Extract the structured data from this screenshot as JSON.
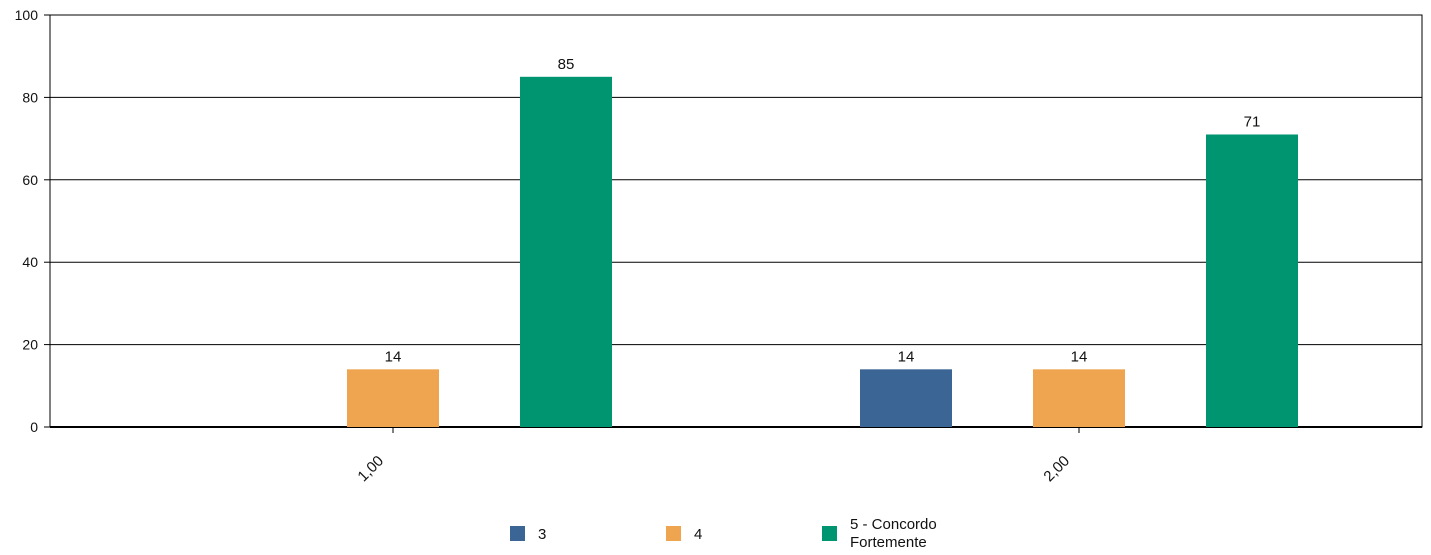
{
  "chart_data": {
    "type": "bar",
    "categories": [
      "1,00",
      "2,00"
    ],
    "series": [
      {
        "name": "3",
        "values": [
          0,
          14
        ],
        "color": "#3a6595"
      },
      {
        "name": "4",
        "values": [
          14,
          14
        ],
        "color": "#efa450"
      },
      {
        "name": "5 - Concordo Fortemente",
        "values": [
          85,
          71
        ],
        "color": "#009571"
      }
    ],
    "ylim": [
      0,
      100
    ],
    "yticks": [
      "0",
      "20",
      "40",
      "60",
      "80",
      "100"
    ],
    "grid": true,
    "legend": "bottom",
    "xlabel": "",
    "ylabel": ""
  }
}
